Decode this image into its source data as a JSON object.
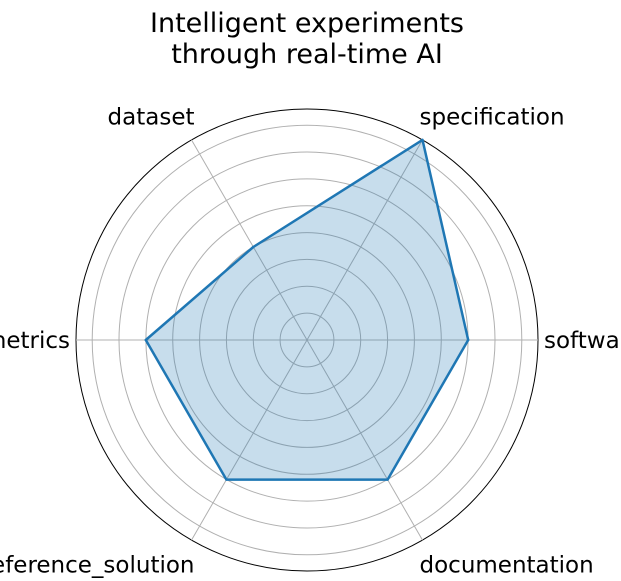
{
  "chart_data": {
    "type": "radar",
    "title_lines": [
      "Intelligent experiments",
      "through real-time AI"
    ],
    "categories": [
      "software",
      "specification",
      "dataset",
      "metrics",
      "reference_solution",
      "documentation"
    ],
    "values": [
      6,
      8.6,
      4,
      6,
      6,
      6
    ],
    "rmax": 8.6,
    "grid": true,
    "series_color": "#1f77b4",
    "fill_color": "#1f77b4"
  }
}
